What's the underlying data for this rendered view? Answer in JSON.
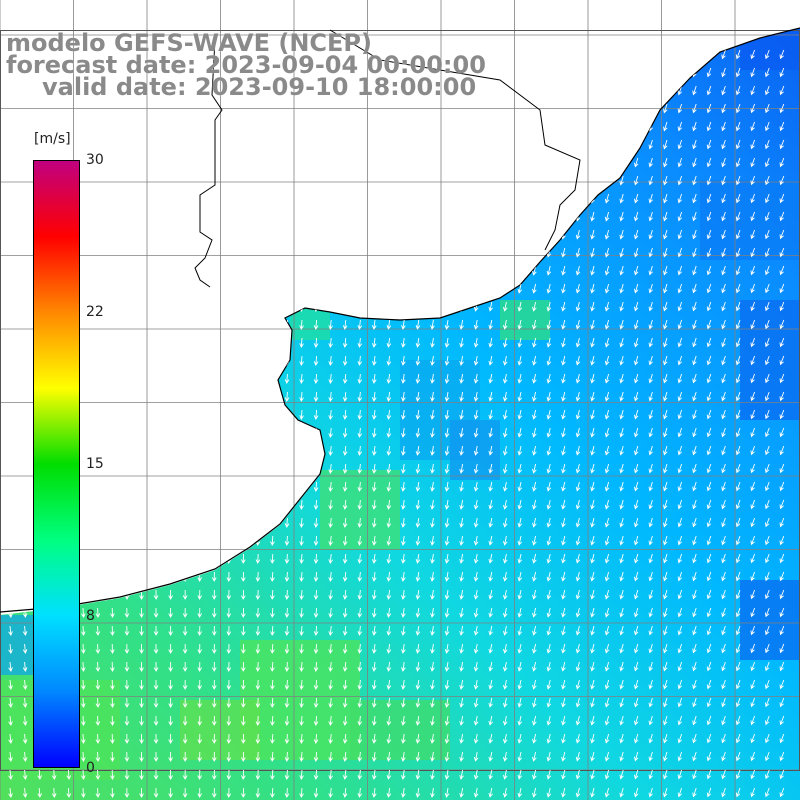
{
  "title": {
    "line1": "modelo GEFS-WAVE (NCEP)",
    "line2": "forecast date: 2023-09-04 00:00:00",
    "line3": "valid date: 2023-09-10 18:00:00"
  },
  "colorbar": {
    "units": "[m/s]",
    "ticks": [
      {
        "value": 30,
        "label": "30"
      },
      {
        "value": 22,
        "label": "22"
      },
      {
        "value": 15,
        "label": "15"
      },
      {
        "value": 8,
        "label": "8"
      },
      {
        "value": 0,
        "label": "0"
      }
    ],
    "range": [
      0,
      30
    ],
    "colors": [
      "#0000ff",
      "#0088ff",
      "#00e0ff",
      "#00ff80",
      "#00dd00",
      "#ffff00",
      "#ff8800",
      "#ff0000",
      "#c00080"
    ]
  },
  "map": {
    "variable": "wind speed and direction",
    "ocean_colors": {
      "low": "#0a5cf0",
      "mid": "#00b8ff",
      "high": "#52e05a"
    },
    "land_color": "#ffffff",
    "grid_color": "#808080",
    "coast_color": "#000000",
    "arrow_color": "#ffffff"
  }
}
